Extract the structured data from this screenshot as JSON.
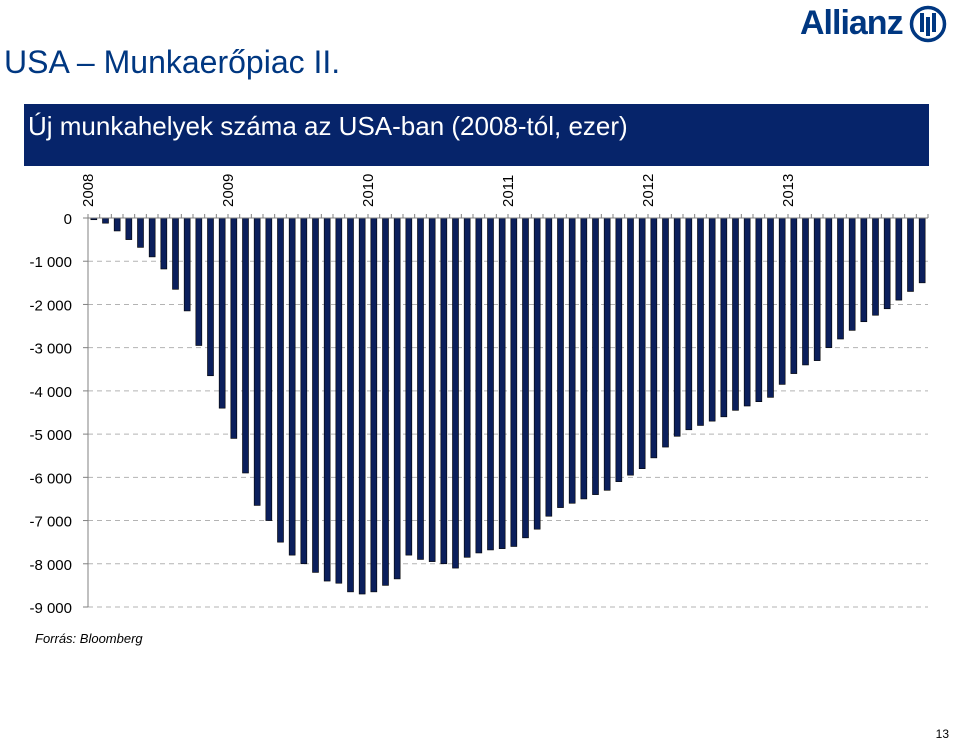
{
  "slide": {
    "title": "USA – Munkaerőpiac II.",
    "logo_text": "Allianz",
    "source": "Forrás: Bloomberg",
    "page_number": "13"
  },
  "colors": {
    "brand": "#003781",
    "header_bg": "#06246a",
    "bar_fill": "#0b1f5c",
    "grid": "#b3b3b3"
  },
  "chart_data": {
    "type": "bar",
    "title": "Új munkahelyek száma az USA-ban (2008-tól, ezer)",
    "xlabel": "",
    "ylabel": "",
    "ylim": [
      -9000,
      0
    ],
    "yticks": [
      0,
      -1000,
      -2000,
      -3000,
      -4000,
      -5000,
      -6000,
      -7000,
      -8000,
      -9000
    ],
    "ytick_labels": [
      "0",
      "-1 000",
      "-2 000",
      "-3 000",
      "-4 000",
      "-5 000",
      "-6 000",
      "-7 000",
      "-8 000",
      "-9 000"
    ],
    "year_labels": [
      "2008",
      "2009",
      "2010",
      "2011",
      "2012",
      "2013"
    ],
    "year_label_start_index": [
      0,
      12,
      24,
      36,
      48,
      60
    ],
    "grid": "horizontal dashed",
    "legend": "none",
    "values": [
      -40,
      -120,
      -300,
      -500,
      -680,
      -900,
      -1180,
      -1650,
      -2150,
      -2950,
      -3650,
      -4400,
      -5100,
      -5900,
      -6650,
      -7000,
      -7500,
      -7800,
      -8000,
      -8200,
      -8400,
      -8450,
      -8650,
      -8700,
      -8650,
      -8500,
      -8350,
      -7800,
      -7900,
      -7950,
      -8000,
      -8100,
      -7850,
      -7750,
      -7680,
      -7650,
      -7600,
      -7400,
      -7200,
      -6900,
      -6700,
      -6600,
      -6500,
      -6400,
      -6300,
      -6100,
      -5950,
      -5800,
      -5550,
      -5300,
      -5050,
      -4900,
      -4800,
      -4700,
      -4600,
      -4450,
      -4350,
      -4250,
      -4150,
      -3850,
      -3600,
      -3400,
      -3300,
      -3000,
      -2800,
      -2600,
      -2400,
      -2250,
      -2100,
      -1900,
      -1700,
      -1500
    ]
  }
}
